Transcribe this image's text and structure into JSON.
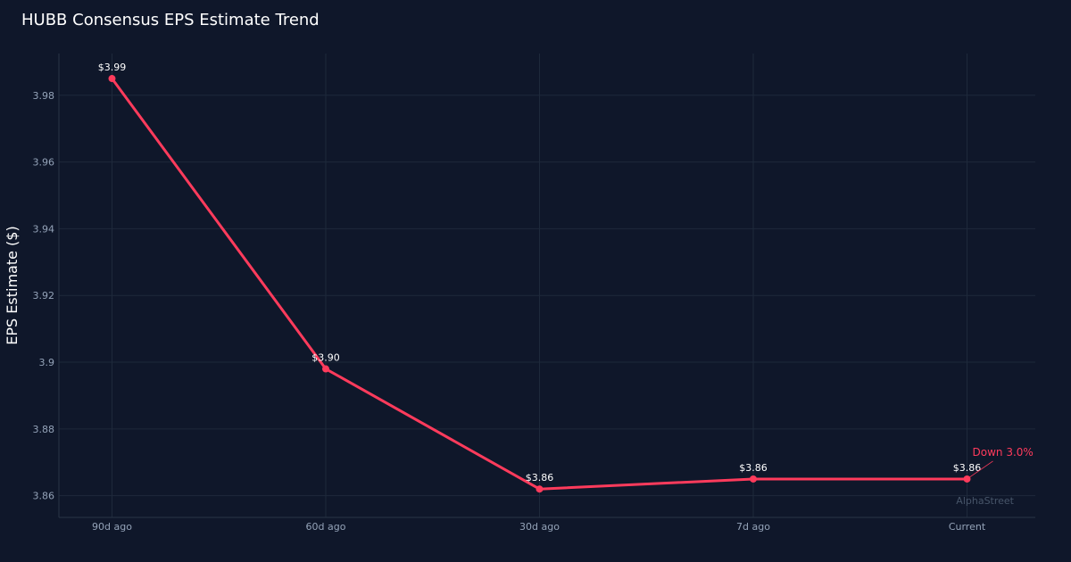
{
  "chart_data": {
    "type": "line",
    "title": "HUBB Consensus EPS Estimate Trend",
    "xlabel": "",
    "ylabel": "EPS Estimate ($)",
    "categories": [
      "90d ago",
      "60d ago",
      "30d ago",
      "7d ago",
      "Current"
    ],
    "series": [
      {
        "values": [
          3.985,
          3.898,
          3.862,
          3.865,
          3.865
        ],
        "data_labels": [
          "$3.99",
          "$3.90",
          "$3.86",
          "$3.86",
          "$3.86"
        ],
        "color": "#ff3b5c"
      }
    ],
    "ylim": [
      3.8535,
      3.9925
    ],
    "yticks": [
      3.86,
      3.88,
      3.9,
      3.92,
      3.94,
      3.96,
      3.98
    ],
    "ytick_labels": [
      "3.86",
      "3.88",
      "3.9",
      "3.92",
      "3.94",
      "3.96",
      "3.98"
    ],
    "grid": true,
    "annotations": [
      {
        "text": "Down 3.0%",
        "category": "Current",
        "color": "#ff3b5c"
      }
    ],
    "watermark": "AlphaStreet"
  },
  "colors": {
    "background": "#0f172a",
    "grid": "#1e293b",
    "axis": "#2a3446",
    "tick_text": "#94a3b8",
    "label_text": "#ffffff",
    "line": "#ff3b5c",
    "watermark": "#475569"
  }
}
